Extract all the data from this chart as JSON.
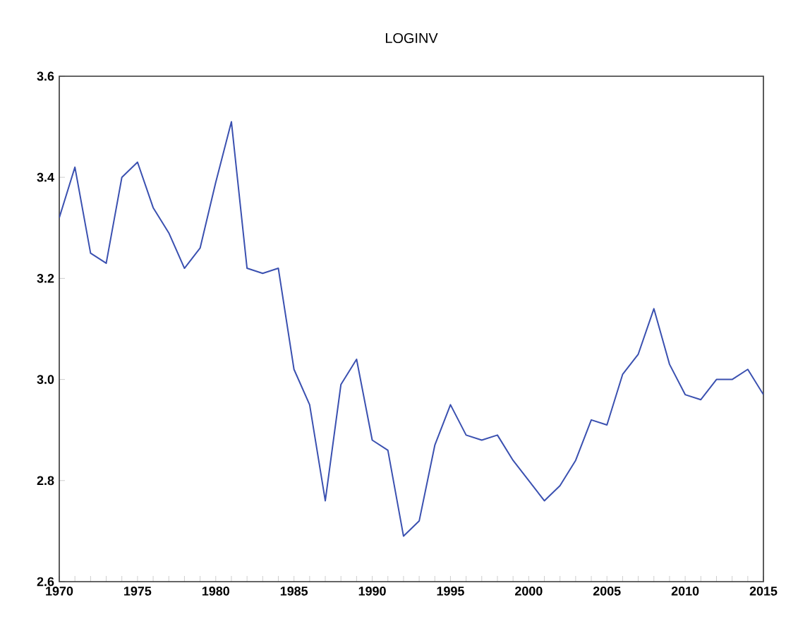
{
  "chart_data": {
    "type": "line",
    "title": "LOGINV",
    "x": [
      1970,
      1971,
      1972,
      1973,
      1974,
      1975,
      1976,
      1977,
      1978,
      1979,
      1980,
      1981,
      1982,
      1983,
      1984,
      1985,
      1986,
      1987,
      1988,
      1989,
      1990,
      1991,
      1992,
      1993,
      1994,
      1995,
      1996,
      1997,
      1998,
      1999,
      2000,
      2001,
      2002,
      2003,
      2004,
      2005,
      2006,
      2007,
      2008,
      2009,
      2010,
      2011,
      2012,
      2013,
      2014,
      2015
    ],
    "values": [
      3.32,
      3.42,
      3.25,
      3.23,
      3.4,
      3.43,
      3.34,
      3.29,
      3.22,
      3.26,
      3.39,
      3.51,
      3.22,
      3.21,
      3.22,
      3.02,
      2.95,
      2.76,
      2.99,
      3.04,
      2.88,
      2.86,
      2.69,
      2.72,
      2.87,
      2.95,
      2.89,
      2.88,
      2.89,
      2.84,
      2.8,
      2.76,
      2.79,
      2.84,
      2.92,
      2.91,
      3.01,
      3.05,
      3.14,
      3.03,
      2.97,
      2.96,
      3.0,
      3.0,
      3.02,
      2.97
    ],
    "color": "#3a50b0",
    "xlim": [
      1970,
      2015
    ],
    "ylim": [
      2.6,
      3.6
    ],
    "xticks": [
      1970,
      {
        "value": 1971,
        "label": null
      },
      {
        "value": 1972,
        "label": null
      },
      {
        "value": 1973,
        "label": null
      },
      {
        "value": 1974,
        "label": null
      },
      1975,
      {
        "value": 1976,
        "label": null
      },
      {
        "value": 1977,
        "label": null
      },
      {
        "value": 1978,
        "label": null
      },
      {
        "value": 1979,
        "label": null
      },
      1980,
      {
        "value": 1981,
        "label": null
      },
      {
        "value": 1982,
        "label": null
      },
      {
        "value": 1983,
        "label": null
      },
      {
        "value": 1984,
        "label": null
      },
      1985,
      {
        "value": 1986,
        "label": null
      },
      {
        "value": 1987,
        "label": null
      },
      {
        "value": 1988,
        "label": null
      },
      {
        "value": 1989,
        "label": null
      },
      1990,
      {
        "value": 1991,
        "label": null
      },
      {
        "value": 1992,
        "label": null
      },
      {
        "value": 1993,
        "label": null
      },
      {
        "value": 1994,
        "label": null
      },
      1995,
      {
        "value": 1996,
        "label": null
      },
      {
        "value": 1997,
        "label": null
      },
      {
        "value": 1998,
        "label": null
      },
      {
        "value": 1999,
        "label": null
      },
      2000,
      {
        "value": 2001,
        "label": null
      },
      {
        "value": 2002,
        "label": null
      },
      {
        "value": 2003,
        "label": null
      },
      {
        "value": 2004,
        "label": null
      },
      2005,
      {
        "value": 2006,
        "label": null
      },
      {
        "value": 2007,
        "label": null
      },
      {
        "value": 2008,
        "label": null
      },
      {
        "value": 2009,
        "label": null
      },
      2010,
      {
        "value": 2011,
        "label": null
      },
      {
        "value": 2012,
        "label": null
      },
      {
        "value": 2013,
        "label": null
      },
      {
        "value": 2014,
        "label": null
      },
      2015
    ],
    "yticks": [
      2.6,
      2.8,
      {
        "value": 3,
        "label": "3.0"
      },
      3.2,
      3.4,
      3.6
    ]
  }
}
